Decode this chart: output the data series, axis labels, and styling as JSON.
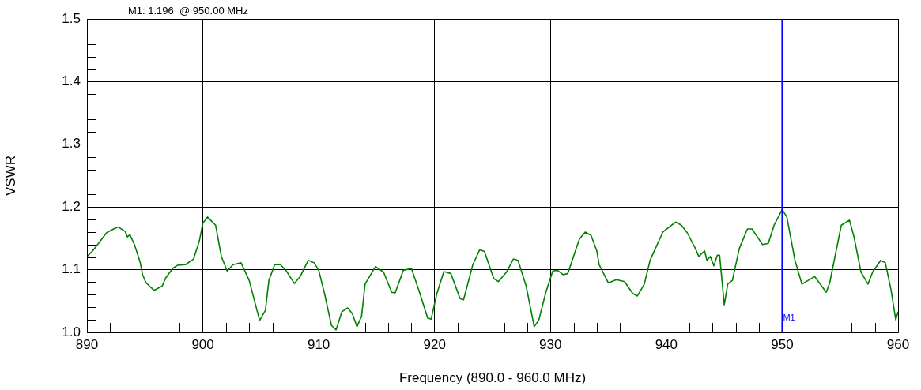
{
  "chart_data": {
    "type": "line",
    "xlabel": "Frequency (890.0 - 960.0 MHz)",
    "ylabel": "VSWR",
    "annotations": [
      "M1: 1.196  @ 950.00 MHz"
    ],
    "xlim": [
      890,
      960
    ],
    "xticks": [
      890,
      {
        "value": 892,
        "label": null
      },
      {
        "value": 894,
        "label": null
      },
      {
        "value": 896,
        "label": null
      },
      {
        "value": 898,
        "label": null
      },
      900,
      {
        "value": 902,
        "label": null
      },
      {
        "value": 904,
        "label": null
      },
      {
        "value": 906,
        "label": null
      },
      {
        "value": 908,
        "label": null
      },
      910,
      {
        "value": 912,
        "label": null
      },
      {
        "value": 914,
        "label": null
      },
      {
        "value": 916,
        "label": null
      },
      {
        "value": 918,
        "label": null
      },
      920,
      {
        "value": 922,
        "label": null
      },
      {
        "value": 924,
        "label": null
      },
      {
        "value": 926,
        "label": null
      },
      {
        "value": 928,
        "label": null
      },
      930,
      {
        "value": 932,
        "label": null
      },
      {
        "value": 934,
        "label": null
      },
      {
        "value": 936,
        "label": null
      },
      {
        "value": 938,
        "label": null
      },
      940,
      {
        "value": 942,
        "label": null
      },
      {
        "value": 944,
        "label": null
      },
      {
        "value": 946,
        "label": null
      },
      {
        "value": 948,
        "label": null
      },
      950,
      {
        "value": 952,
        "label": null
      },
      {
        "value": 954,
        "label": null
      },
      {
        "value": 956,
        "label": null
      },
      {
        "value": 958,
        "label": null
      },
      960
    ],
    "ylim": [
      1.0,
      1.5
    ],
    "yticks": [
      {
        "value": 1.0,
        "label": "1.0"
      },
      {
        "value": 1.02,
        "label": null
      },
      {
        "value": 1.04,
        "label": null
      },
      {
        "value": 1.06,
        "label": null
      },
      {
        "value": 1.08,
        "label": null
      },
      1.1,
      {
        "value": 1.12,
        "label": null
      },
      {
        "value": 1.14,
        "label": null
      },
      {
        "value": 1.16,
        "label": null
      },
      {
        "value": 1.18,
        "label": null
      },
      1.2,
      {
        "value": 1.22,
        "label": null
      },
      {
        "value": 1.24,
        "label": null
      },
      {
        "value": 1.26,
        "label": null
      },
      {
        "value": 1.28,
        "label": null
      },
      1.3,
      {
        "value": 1.32,
        "label": null
      },
      {
        "value": 1.34,
        "label": null
      },
      {
        "value": 1.36,
        "label": null
      },
      {
        "value": 1.38,
        "label": null
      },
      1.4,
      {
        "value": 1.42,
        "label": null
      },
      {
        "value": 1.44,
        "label": null
      },
      {
        "value": 1.46,
        "label": null
      },
      {
        "value": 1.48,
        "label": null
      },
      1.5
    ],
    "grid": true,
    "legend": false,
    "marker": "none",
    "line_style": "solid",
    "ref_lines": [
      {
        "axis": "x",
        "value": 950,
        "label": "M1",
        "color": "#0000ff"
      }
    ],
    "series": [
      {
        "color": "#008000",
        "x": [
          890,
          890.5,
          891.0,
          891.7,
          892.4,
          892.7,
          893.3,
          893.5,
          893.7,
          894.1,
          894.6,
          894.8,
          895.1,
          895.8,
          896.5,
          896.8,
          897.4,
          897.8,
          898.5,
          899.2,
          899.7,
          900.0,
          900.4,
          901.1,
          901.6,
          902.1,
          902.6,
          903.3,
          904.0,
          904.9,
          905.4,
          905.7,
          906.2,
          906.7,
          907.2,
          907.9,
          908.4,
          909.1,
          909.6,
          910.0,
          910.5,
          911.1,
          911.5,
          912.0,
          912.5,
          912.9,
          913.3,
          913.7,
          914.0,
          914.9,
          915.6,
          916.3,
          916.6,
          917.3,
          918.0,
          918.7,
          919.4,
          919.7,
          920.2,
          920.8,
          921.4,
          922.2,
          922.5,
          923.3,
          923.9,
          924.3,
          925.1,
          925.5,
          926.2,
          926.8,
          927.2,
          927.9,
          928.6,
          929.0,
          929.6,
          930.2,
          930.6,
          931.1,
          931.5,
          932.5,
          933.0,
          933.5,
          934.0,
          934.2,
          935.0,
          935.7,
          936.4,
          937.1,
          937.5,
          938.1,
          938.6,
          939.7,
          940.8,
          941.3,
          941.8,
          942.5,
          942.8,
          943.3,
          943.5,
          943.8,
          944.1,
          944.4,
          944.6,
          944.8,
          945.0,
          945.3,
          945.7,
          946.3,
          947.0,
          947.4,
          948.3,
          948.8,
          949.3,
          950.0,
          950.4,
          951.1,
          951.7,
          952.8,
          953.8,
          954.1,
          955.1,
          955.8,
          956.2,
          956.8,
          957.4,
          957.8,
          958.5,
          958.9,
          959.4,
          959.8,
          960
        ],
        "values": [
          1.121,
          1.13,
          1.142,
          1.159,
          1.166,
          1.168,
          1.161,
          1.152,
          1.156,
          1.14,
          1.111,
          1.092,
          1.079,
          1.067,
          1.074,
          1.087,
          1.102,
          1.107,
          1.108,
          1.117,
          1.146,
          1.174,
          1.184,
          1.171,
          1.121,
          1.098,
          1.108,
          1.111,
          1.083,
          1.019,
          1.035,
          1.083,
          1.108,
          1.108,
          1.098,
          1.078,
          1.089,
          1.115,
          1.111,
          1.099,
          1.062,
          1.011,
          1.004,
          1.033,
          1.039,
          1.03,
          1.009,
          1.026,
          1.077,
          1.105,
          1.096,
          1.064,
          1.063,
          1.099,
          1.102,
          1.064,
          1.023,
          1.021,
          1.062,
          1.097,
          1.094,
          1.054,
          1.052,
          1.108,
          1.132,
          1.129,
          1.086,
          1.081,
          1.096,
          1.117,
          1.115,
          1.074,
          1.009,
          1.02,
          1.064,
          1.098,
          1.099,
          1.092,
          1.094,
          1.149,
          1.16,
          1.155,
          1.13,
          1.108,
          1.079,
          1.084,
          1.081,
          1.062,
          1.058,
          1.077,
          1.115,
          1.16,
          1.176,
          1.171,
          1.159,
          1.134,
          1.121,
          1.13,
          1.115,
          1.121,
          1.106,
          1.123,
          1.123,
          1.083,
          1.044,
          1.077,
          1.083,
          1.134,
          1.165,
          1.165,
          1.14,
          1.142,
          1.171,
          1.196,
          1.184,
          1.115,
          1.077,
          1.089,
          1.064,
          1.079,
          1.171,
          1.179,
          1.152,
          1.096,
          1.077,
          1.096,
          1.115,
          1.111,
          1.067,
          1.02,
          1.033
        ]
      }
    ]
  }
}
